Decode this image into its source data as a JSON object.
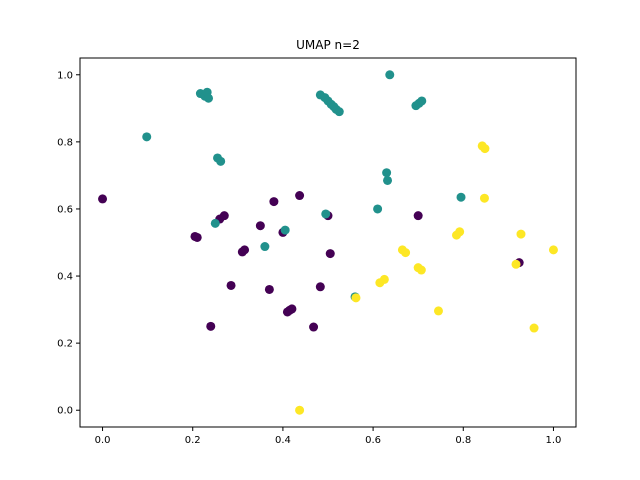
{
  "chart_data": {
    "type": "scatter",
    "title": "UMAP n=2",
    "xlabel": "",
    "ylabel": "",
    "xlim": [
      -0.05,
      1.05
    ],
    "ylim": [
      -0.05,
      1.05
    ],
    "xticks": [
      0.0,
      0.2,
      0.4,
      0.6,
      0.8,
      1.0
    ],
    "yticks": [
      0.0,
      0.2,
      0.4,
      0.6,
      0.8,
      1.0
    ],
    "xtick_labels": [
      "0.0",
      "0.2",
      "0.4",
      "0.6",
      "0.8",
      "1.0"
    ],
    "ytick_labels": [
      "0.0",
      "0.2",
      "0.4",
      "0.6",
      "0.8",
      "1.0"
    ],
    "grid": false,
    "legend": "none",
    "series": [
      {
        "color": "#440154",
        "points": [
          [
            0.0,
            0.63
          ],
          [
            0.205,
            0.518
          ],
          [
            0.21,
            0.515
          ],
          [
            0.24,
            0.25
          ],
          [
            0.26,
            0.57
          ],
          [
            0.27,
            0.58
          ],
          [
            0.285,
            0.372
          ],
          [
            0.31,
            0.472
          ],
          [
            0.315,
            0.478
          ],
          [
            0.35,
            0.55
          ],
          [
            0.37,
            0.36
          ],
          [
            0.38,
            0.622
          ],
          [
            0.4,
            0.53
          ],
          [
            0.41,
            0.293
          ],
          [
            0.415,
            0.298
          ],
          [
            0.42,
            0.302
          ],
          [
            0.437,
            0.64
          ],
          [
            0.468,
            0.248
          ],
          [
            0.483,
            0.368
          ],
          [
            0.5,
            0.58
          ],
          [
            0.505,
            0.467
          ],
          [
            0.7,
            0.58
          ],
          [
            0.924,
            0.44
          ]
        ]
      },
      {
        "color": "#21918c",
        "points": [
          [
            0.098,
            0.815
          ],
          [
            0.217,
            0.944
          ],
          [
            0.227,
            0.936
          ],
          [
            0.232,
            0.948
          ],
          [
            0.235,
            0.93
          ],
          [
            0.25,
            0.557
          ],
          [
            0.255,
            0.752
          ],
          [
            0.262,
            0.742
          ],
          [
            0.36,
            0.488
          ],
          [
            0.405,
            0.537
          ],
          [
            0.483,
            0.94
          ],
          [
            0.493,
            0.932
          ],
          [
            0.5,
            0.922
          ],
          [
            0.507,
            0.912
          ],
          [
            0.513,
            0.905
          ],
          [
            0.518,
            0.897
          ],
          [
            0.525,
            0.89
          ],
          [
            0.495,
            0.585
          ],
          [
            0.56,
            0.338
          ],
          [
            0.61,
            0.6
          ],
          [
            0.63,
            0.708
          ],
          [
            0.632,
            0.685
          ],
          [
            0.637,
            1.0
          ],
          [
            0.695,
            0.908
          ],
          [
            0.702,
            0.915
          ],
          [
            0.708,
            0.922
          ],
          [
            0.795,
            0.635
          ]
        ]
      },
      {
        "color": "#fde725",
        "points": [
          [
            0.437,
            0.0
          ],
          [
            0.562,
            0.335
          ],
          [
            0.615,
            0.38
          ],
          [
            0.625,
            0.39
          ],
          [
            0.665,
            0.478
          ],
          [
            0.672,
            0.47
          ],
          [
            0.7,
            0.425
          ],
          [
            0.707,
            0.418
          ],
          [
            0.745,
            0.296
          ],
          [
            0.785,
            0.522
          ],
          [
            0.792,
            0.532
          ],
          [
            0.842,
            0.788
          ],
          [
            0.848,
            0.78
          ],
          [
            0.847,
            0.632
          ],
          [
            0.917,
            0.435
          ],
          [
            0.928,
            0.525
          ],
          [
            0.957,
            0.245
          ],
          [
            1.0,
            0.478
          ]
        ]
      }
    ]
  }
}
